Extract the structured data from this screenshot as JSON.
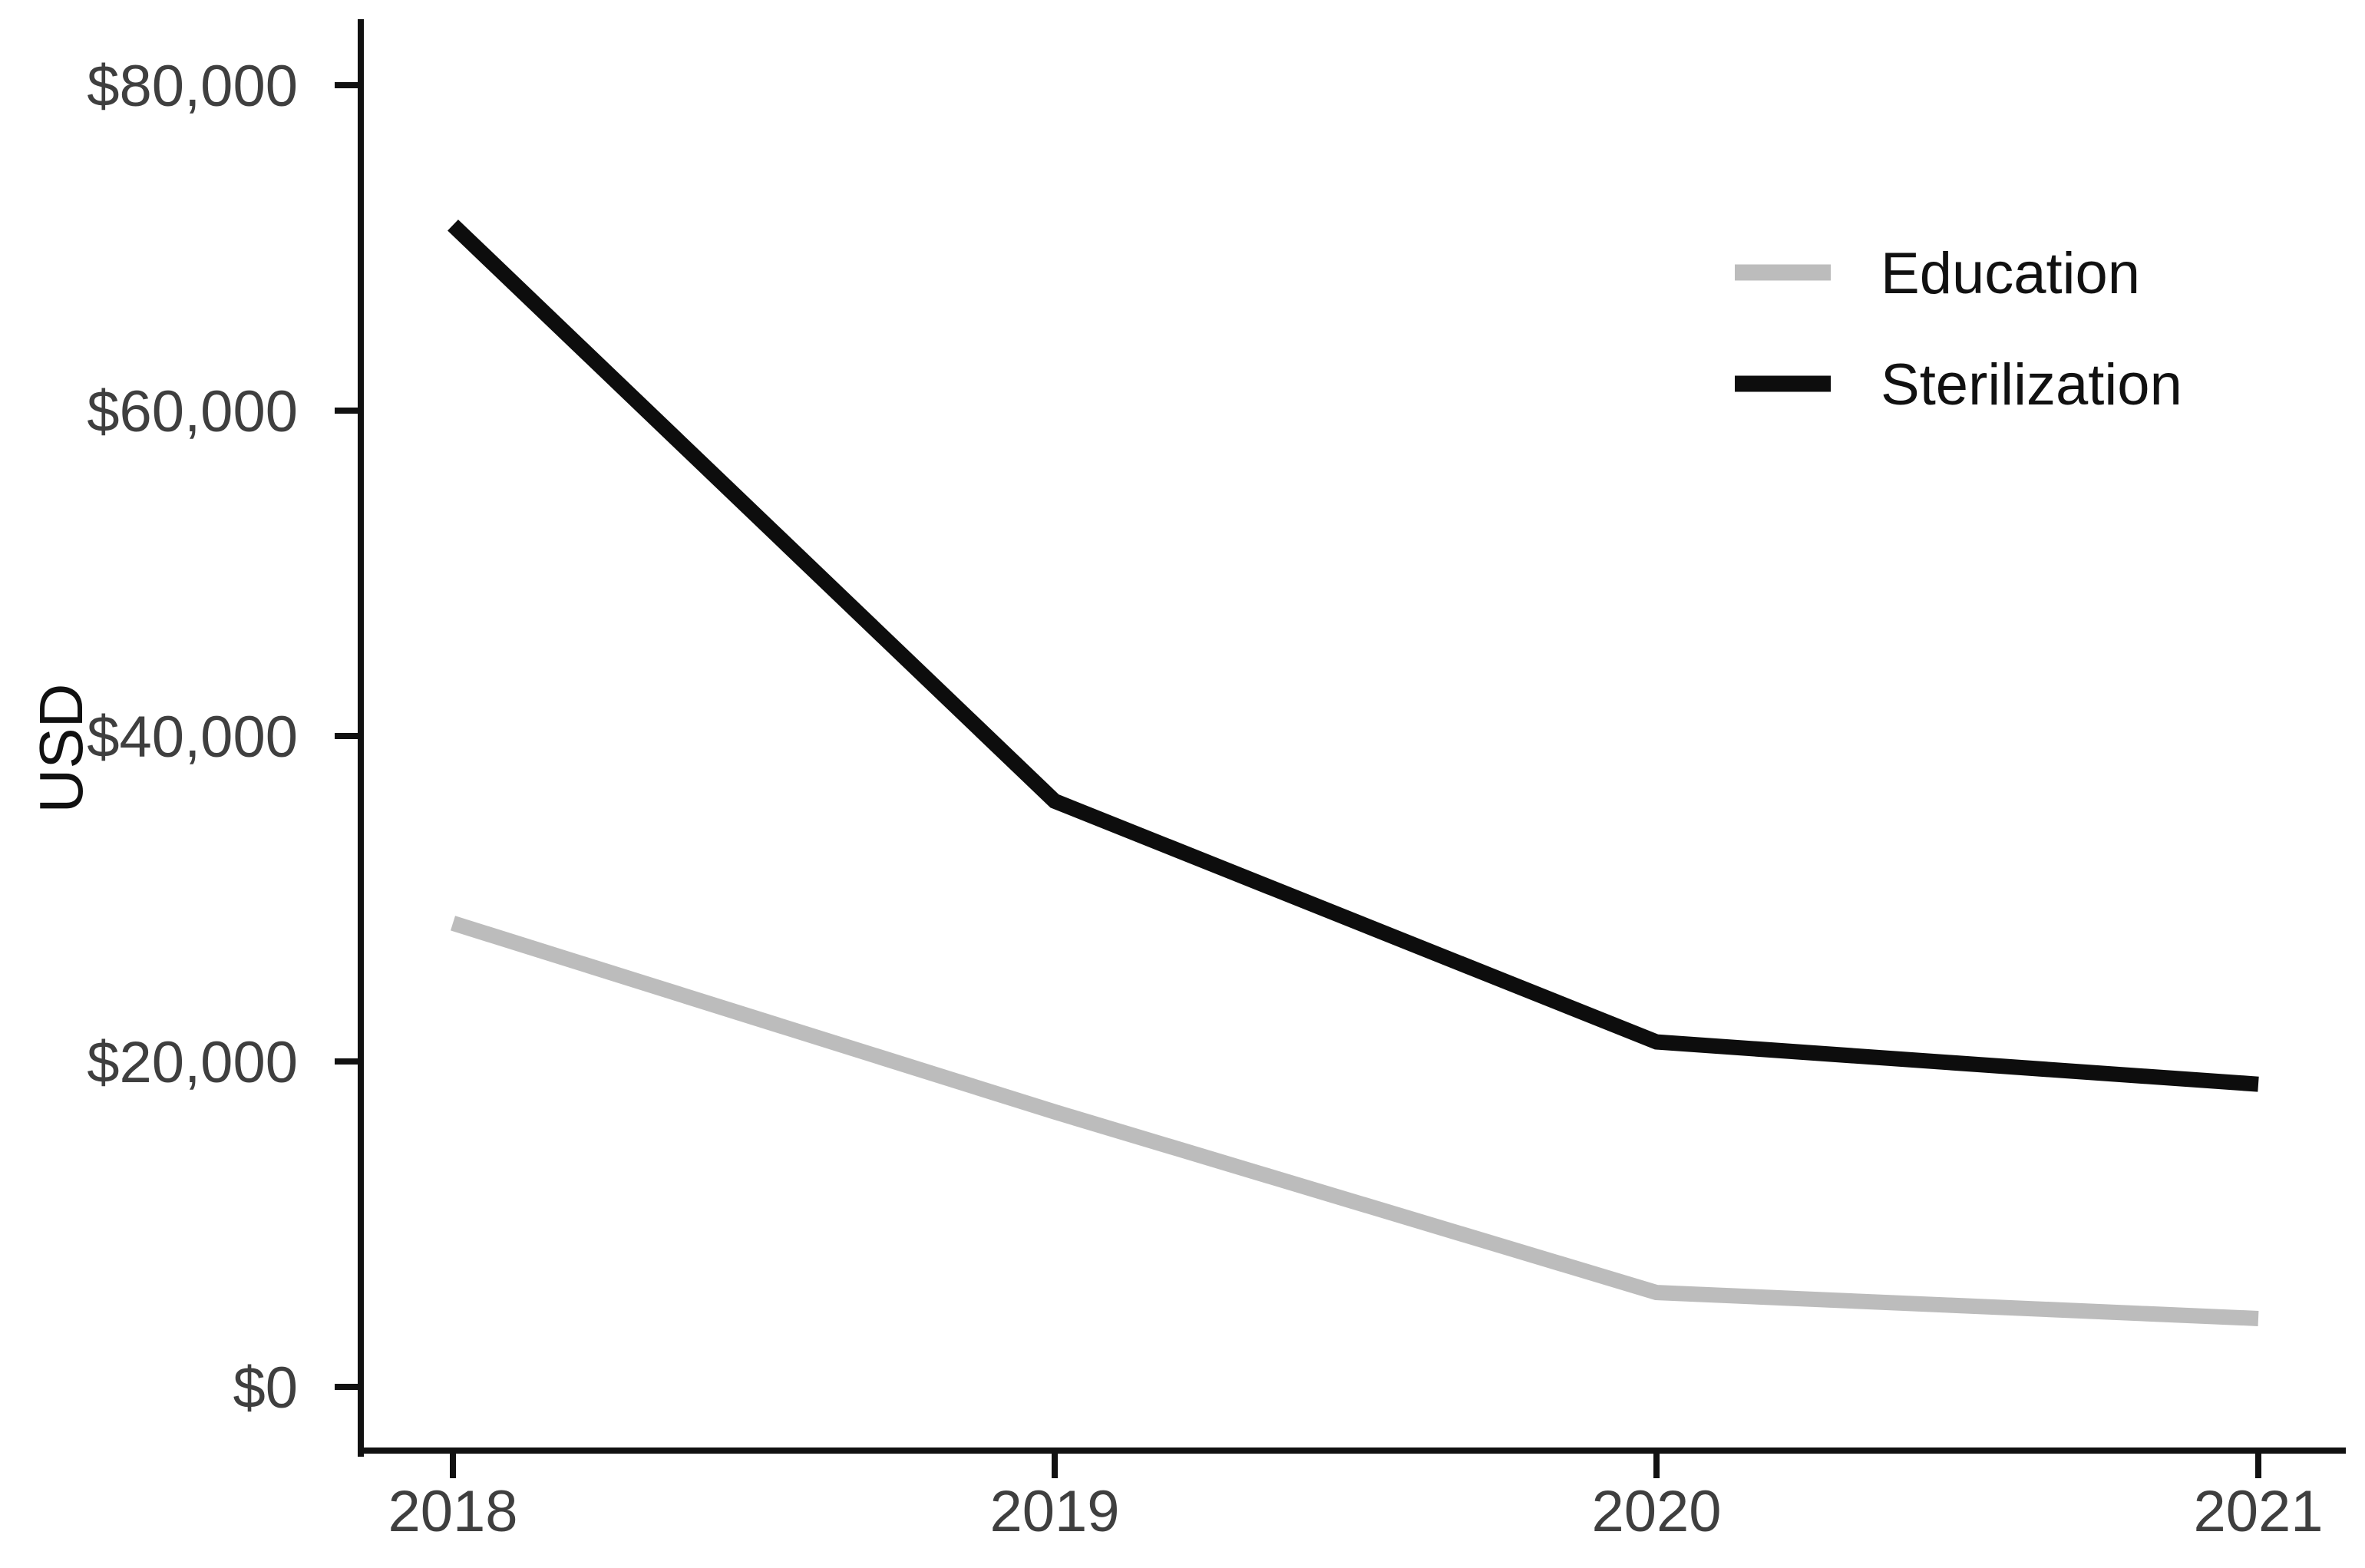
{
  "page": {
    "background": "#ffffff"
  },
  "chart_data": {
    "type": "line",
    "title": "",
    "categories": [
      "2018",
      "2019",
      "2020",
      "2021"
    ],
    "series": [
      {
        "name": "Education",
        "color": "#bcbcbc",
        "values": [
          28500,
          16900,
          5800,
          4200
        ]
      },
      {
        "name": "Sterilization",
        "color": "#0d0d0d",
        "values": [
          71400,
          36000,
          21200,
          18600
        ]
      }
    ],
    "xlabel": "",
    "ylabel": "USD",
    "ylim": [
      0,
      83000
    ],
    "y_ticks": [
      {
        "value": 0,
        "label": "$0"
      },
      {
        "value": 20000,
        "label": "$20,000"
      },
      {
        "value": 40000,
        "label": "$40,000"
      },
      {
        "value": 60000,
        "label": "$60,000"
      },
      {
        "value": 80000,
        "label": "$80,000"
      }
    ],
    "grid": "off",
    "legend_position": "top-right",
    "axis_color": "#111111",
    "tick_label_color": "#3f3f3f",
    "text_color": "#111111"
  }
}
